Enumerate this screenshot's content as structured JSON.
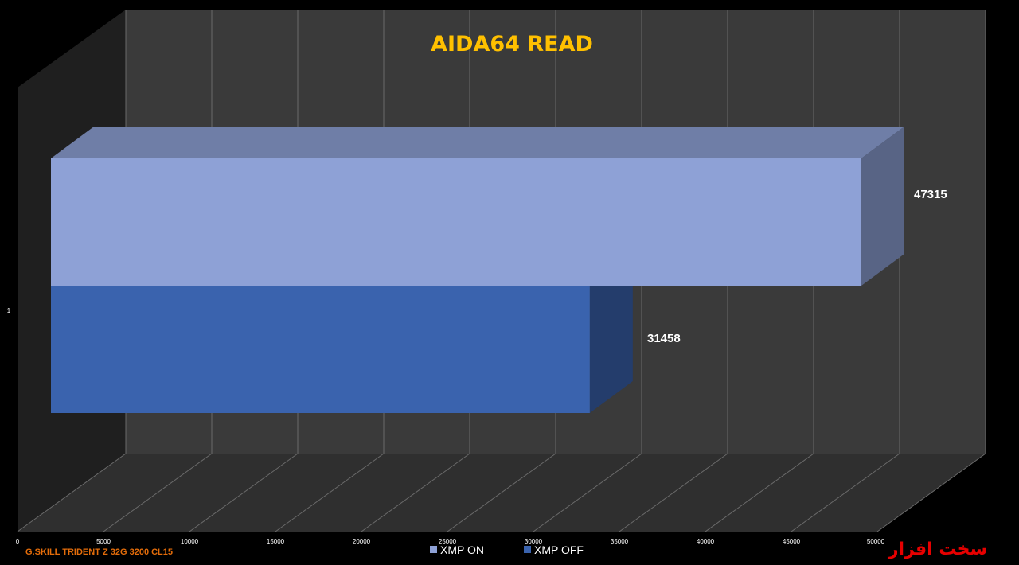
{
  "chart_data": {
    "type": "bar",
    "orientation": "horizontal",
    "three_d": true,
    "title": "AIDA64 READ",
    "categories": [
      "1"
    ],
    "series": [
      {
        "name": "XMP ON",
        "values": [
          47315
        ],
        "color": "#8ea1d6"
      },
      {
        "name": "XMP OFF",
        "values": [
          31458
        ],
        "color": "#3a63ae"
      }
    ],
    "data_labels": [
      "47315",
      "31458"
    ],
    "xlim": [
      0,
      50000
    ],
    "x_ticks": [
      "0",
      "5000",
      "10000",
      "15000",
      "20000",
      "25000",
      "30000",
      "35000",
      "40000",
      "45000",
      "50000"
    ],
    "grid": true,
    "legend_position": "bottom"
  },
  "footer": {
    "product": "G.SKILL  TRIDENT Z 32G 3200 CL15"
  },
  "watermark": {
    "text": "سخت افزار",
    "color": "#e60000"
  },
  "colors": {
    "background": "#000000",
    "wall": "#3a3a3a",
    "floor": "#2f2f2f",
    "gridline": "#6a6a6a",
    "title": "#ffc000"
  }
}
